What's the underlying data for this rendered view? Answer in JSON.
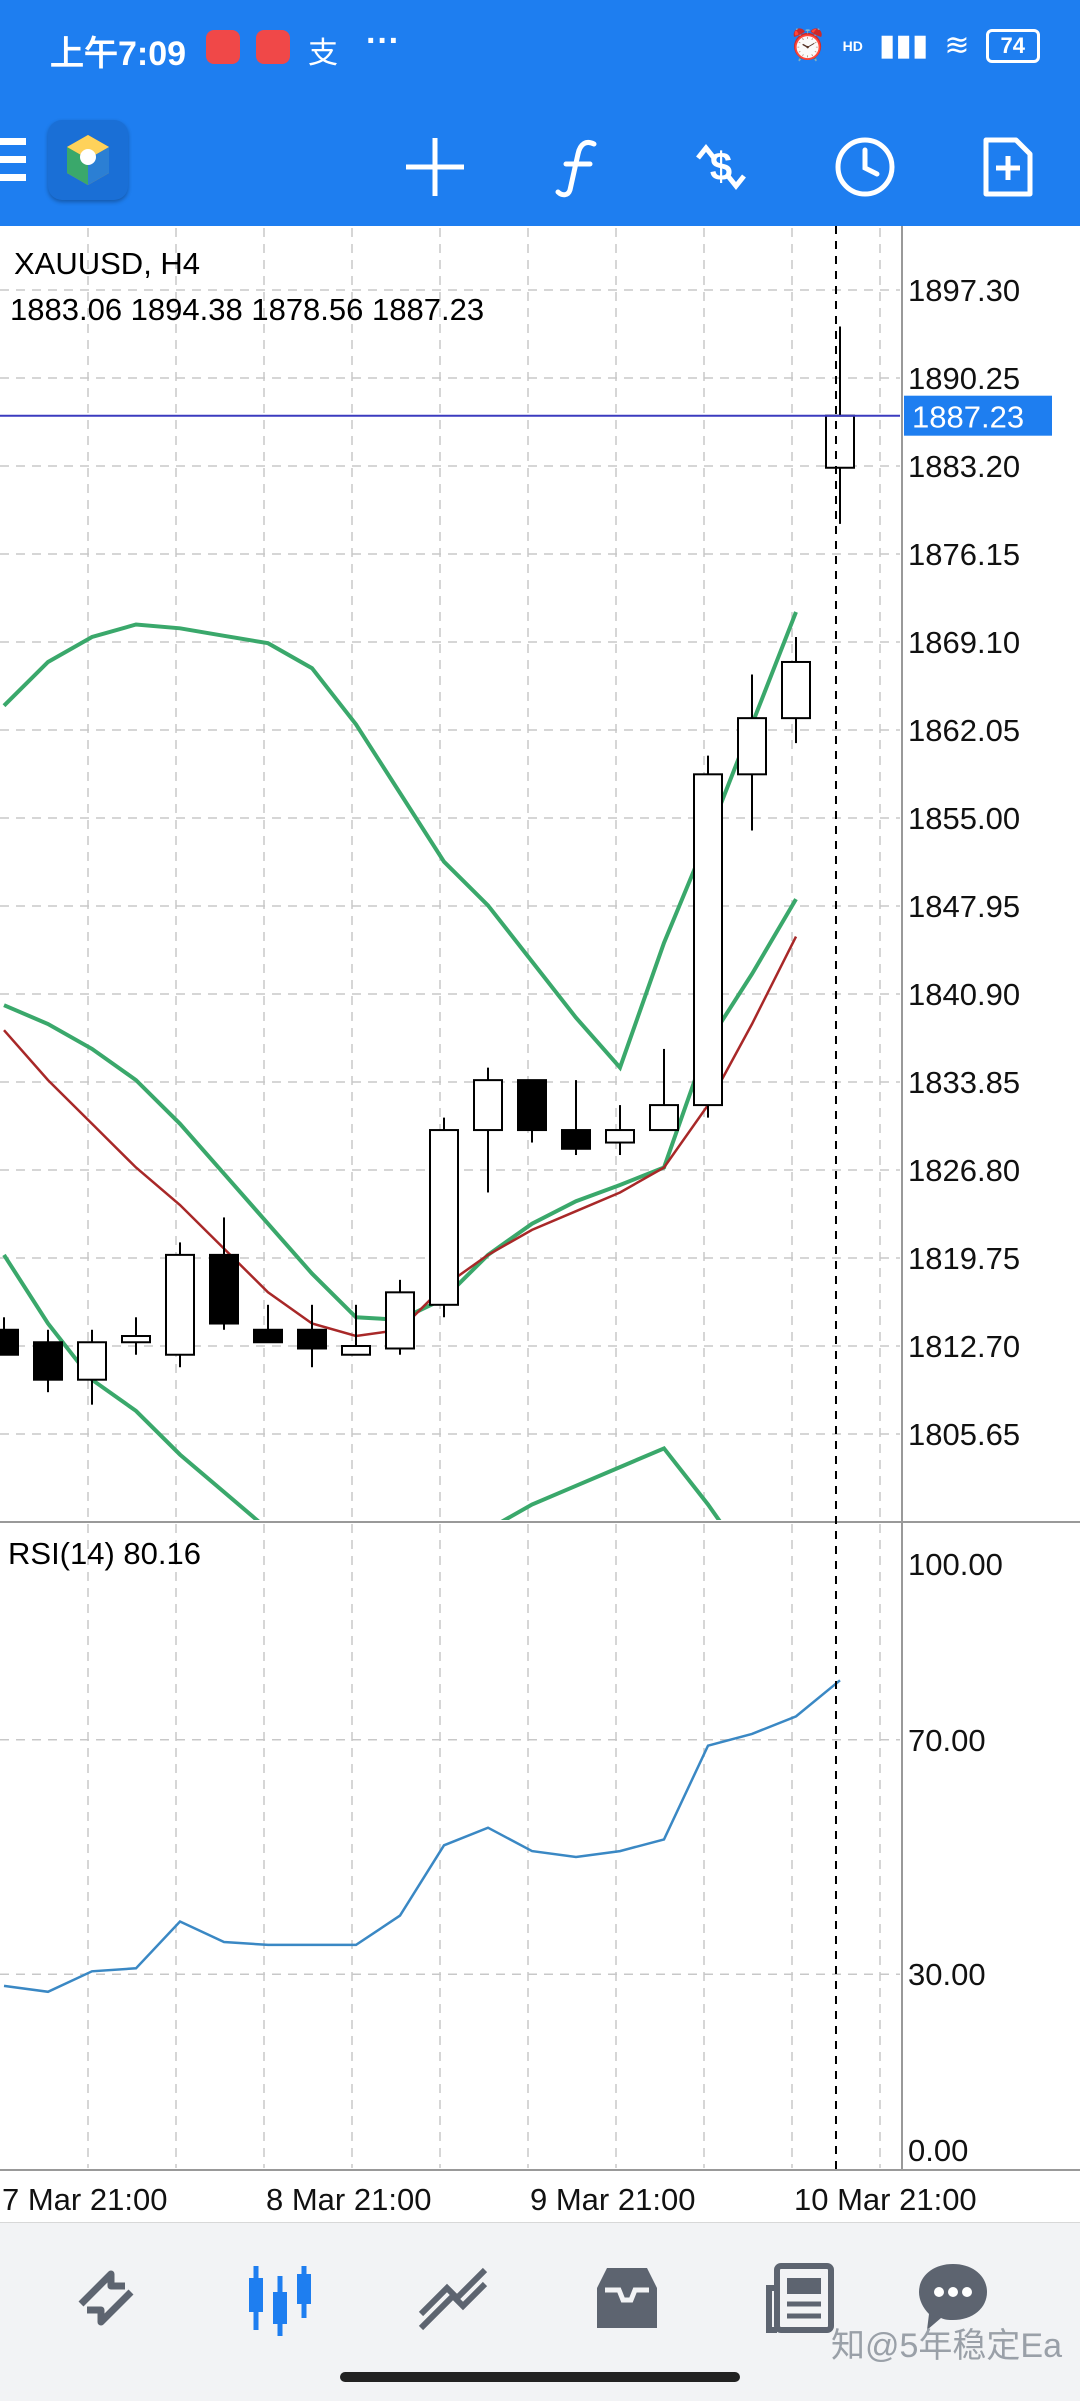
{
  "status_bar": {
    "time": "上午7:09",
    "battery": "74",
    "network": "HD"
  },
  "chart": {
    "symbol_title": "XAUUSD, H4",
    "ohlc_readout": "1883.06 1894.38 1878.56 1887.23",
    "current_price_label": "1887.23",
    "price_ticks": [
      "1897.30",
      "1890.25",
      "1883.20",
      "1876.15",
      "1869.10",
      "1862.05",
      "1855.00",
      "1847.95",
      "1840.90",
      "1833.85",
      "1826.80",
      "1819.75",
      "1812.70",
      "1805.65"
    ],
    "indicator_label": "RSI(14) 80.16",
    "rsi_ticks": [
      "100.00",
      "70.00",
      "30.00",
      "0.00"
    ],
    "time_labels": [
      "7 Mar 21:00",
      "8 Mar 21:00",
      "9 Mar 21:00",
      "10 Mar 21:00"
    ]
  },
  "chart_data": {
    "type": "candlestick",
    "title": "XAUUSD, H4",
    "y_range": [
      1800,
      1902
    ],
    "candles": [
      {
        "o": 1814,
        "h": 1815,
        "l": 1812,
        "c": 1812
      },
      {
        "o": 1813,
        "h": 1814,
        "l": 1809,
        "c": 1810
      },
      {
        "o": 1810,
        "h": 1814,
        "l": 1808,
        "c": 1813
      },
      {
        "o": 1813,
        "h": 1815,
        "l": 1812,
        "c": 1813.5
      },
      {
        "o": 1812,
        "h": 1821,
        "l": 1811,
        "c": 1820
      },
      {
        "o": 1820,
        "h": 1823,
        "l": 1814,
        "c": 1814.5
      },
      {
        "o": 1814,
        "h": 1816,
        "l": 1813,
        "c": 1813
      },
      {
        "o": 1814,
        "h": 1816,
        "l": 1811,
        "c": 1812.5
      },
      {
        "o": 1812,
        "h": 1816,
        "l": 1812,
        "c": 1812.7
      },
      {
        "o": 1812.5,
        "h": 1818,
        "l": 1812,
        "c": 1817
      },
      {
        "o": 1816,
        "h": 1831,
        "l": 1815,
        "c": 1830
      },
      {
        "o": 1830,
        "h": 1835,
        "l": 1825,
        "c": 1834
      },
      {
        "o": 1834,
        "h": 1834,
        "l": 1829,
        "c": 1830
      },
      {
        "o": 1830,
        "h": 1834,
        "l": 1828,
        "c": 1828.5
      },
      {
        "o": 1829,
        "h": 1832,
        "l": 1828,
        "c": 1830
      },
      {
        "o": 1830,
        "h": 1836.5,
        "l": 1830,
        "c": 1832
      },
      {
        "o": 1832,
        "h": 1860,
        "l": 1831,
        "c": 1858.5
      },
      {
        "o": 1858.5,
        "h": 1866.5,
        "l": 1854,
        "c": 1863
      },
      {
        "o": 1863,
        "h": 1869.5,
        "l": 1861,
        "c": 1867.5
      },
      {
        "o": 1883.06,
        "h": 1894.38,
        "l": 1878.56,
        "c": 1887.23
      }
    ],
    "bollinger_upper": [
      1864,
      1867.5,
      1869.5,
      1870.5,
      1870.2,
      1869.6,
      1869,
      1867,
      1862.5,
      1857,
      1851.5,
      1848,
      1843.5,
      1839,
      1835,
      1845,
      1853.5,
      1862.5,
      1871.5
    ],
    "bollinger_middle": [
      1840,
      1838.5,
      1836.5,
      1834,
      1830.5,
      1826.5,
      1822.5,
      1818.5,
      1815,
      1814.8,
      1816.5,
      1820,
      1822.5,
      1824.3,
      1825.6,
      1827,
      1837,
      1842.5,
      1848.5
    ],
    "bollinger_lower": [
      1820,
      1814.5,
      1810,
      1807.5,
      1804,
      1801,
      1798,
      1795.5,
      1795,
      1795,
      1796,
      1798,
      1800,
      1801.5,
      1803,
      1804.5,
      1800,
      1795,
      1790
    ],
    "rsi": [
      28,
      27,
      30.5,
      31,
      39,
      35.5,
      35,
      35,
      35,
      40,
      52,
      55,
      51,
      50,
      51,
      53,
      69,
      71,
      74,
      80.16
    ],
    "rsi_range": [
      0,
      100
    ],
    "x_labels": [
      "7 Mar 21:00",
      "8 Mar 21:00",
      "9 Mar 21:00",
      "10 Mar 21:00"
    ],
    "current_price": 1887.23
  },
  "colors": {
    "accent": "#1e7ef0",
    "bollinger": "#3aa86b",
    "moving_avg": "#a82828",
    "rsi_line": "#3a88c4",
    "price_line": "#3b3bbf",
    "price_badge": "#1e7ef0"
  },
  "toolbar_icons": [
    "logo-icon",
    "crosshair-icon",
    "indicator-f-icon",
    "symbol-change-icon",
    "timeframe-clock-icon",
    "new-order-icon"
  ],
  "bottom_nav": {
    "items": [
      "quotes-icon",
      "chart-icon",
      "trade-icon",
      "history-icon",
      "news-icon",
      "messages-icon"
    ],
    "watermark": "知@5年稳定Ea"
  }
}
